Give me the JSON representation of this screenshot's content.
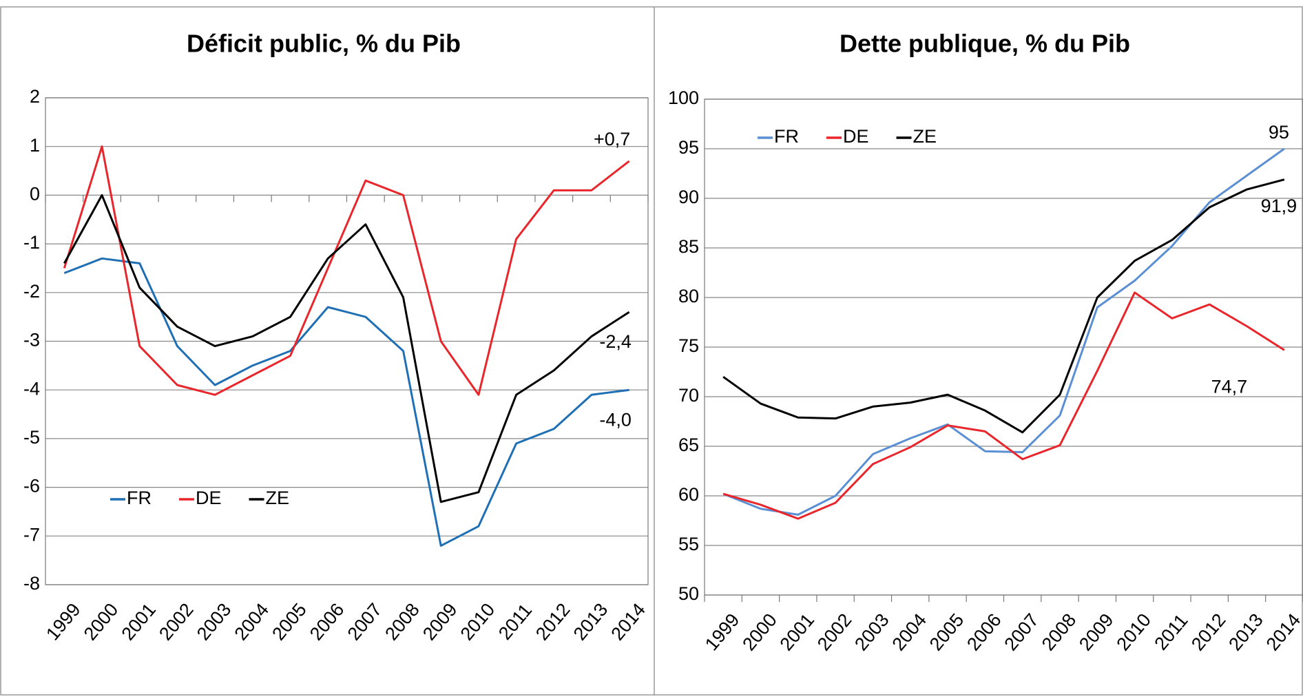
{
  "chart_data": [
    {
      "type": "line",
      "title": "Déficit public, % du Pib",
      "categories": [
        "1999",
        "2000",
        "2001",
        "2002",
        "2003",
        "2004",
        "2005",
        "2006",
        "2007",
        "2008",
        "2009",
        "2010",
        "2011",
        "2012",
        "2013",
        "2014"
      ],
      "series": [
        {
          "name": "FR",
          "color": "#1f6fb5",
          "values": [
            -1.6,
            -1.3,
            -1.4,
            -3.1,
            -3.9,
            -3.5,
            -3.2,
            -2.3,
            -2.5,
            -3.2,
            -7.2,
            -6.8,
            -5.1,
            -4.8,
            -4.1,
            -4.0
          ]
        },
        {
          "name": "DE",
          "color": "#e8262b",
          "values": [
            -1.5,
            1.0,
            -3.1,
            -3.9,
            -4.1,
            -3.7,
            -3.3,
            -1.5,
            0.3,
            0.0,
            -3.0,
            -4.1,
            -0.9,
            0.1,
            0.1,
            0.7
          ]
        },
        {
          "name": "ZE",
          "color": "#000000",
          "values": [
            -1.4,
            0.0,
            -1.9,
            -2.7,
            -3.1,
            -2.9,
            -2.5,
            -1.3,
            -0.6,
            -2.1,
            -6.3,
            -6.1,
            -4.1,
            -3.6,
            -2.9,
            -2.4
          ]
        }
      ],
      "annotations": [
        "+0,7",
        "-2,4",
        "-4,0"
      ],
      "ylim": [
        -8,
        2
      ],
      "yticks": [
        -8,
        -7,
        -6,
        -5,
        -4,
        -3,
        -2,
        -1,
        0,
        1,
        2
      ],
      "grid": true,
      "legend": "lower left"
    },
    {
      "type": "line",
      "title": "Dette publique, % du Pib",
      "categories": [
        "1999",
        "2000",
        "2001",
        "2002",
        "2003",
        "2004",
        "2005",
        "2006",
        "2007",
        "2008",
        "2009",
        "2010",
        "2011",
        "2012",
        "2013",
        "2014"
      ],
      "series": [
        {
          "name": "FR",
          "color": "#5b8fd4",
          "values": [
            60.2,
            58.7,
            58.1,
            60.0,
            64.2,
            65.8,
            67.2,
            64.5,
            64.4,
            68.1,
            79.0,
            81.7,
            85.2,
            89.6,
            92.3,
            95.0
          ]
        },
        {
          "name": "DE",
          "color": "#e8262b",
          "values": [
            60.2,
            59.1,
            57.7,
            59.3,
            63.2,
            64.9,
            67.1,
            66.5,
            63.7,
            65.1,
            72.6,
            80.5,
            77.9,
            79.3,
            77.1,
            74.7
          ]
        },
        {
          "name": "ZE",
          "color": "#000000",
          "values": [
            72.0,
            69.3,
            67.9,
            67.8,
            69.0,
            69.4,
            70.2,
            68.6,
            66.4,
            70.2,
            80.0,
            83.7,
            85.8,
            89.1,
            90.9,
            91.9
          ]
        }
      ],
      "annotations": [
        "95",
        "91,9",
        "74,7"
      ],
      "ylim": [
        50,
        100
      ],
      "yticks": [
        50,
        55,
        60,
        65,
        70,
        75,
        80,
        85,
        90,
        95,
        100
      ],
      "grid": true,
      "legend": "upper left"
    }
  ]
}
